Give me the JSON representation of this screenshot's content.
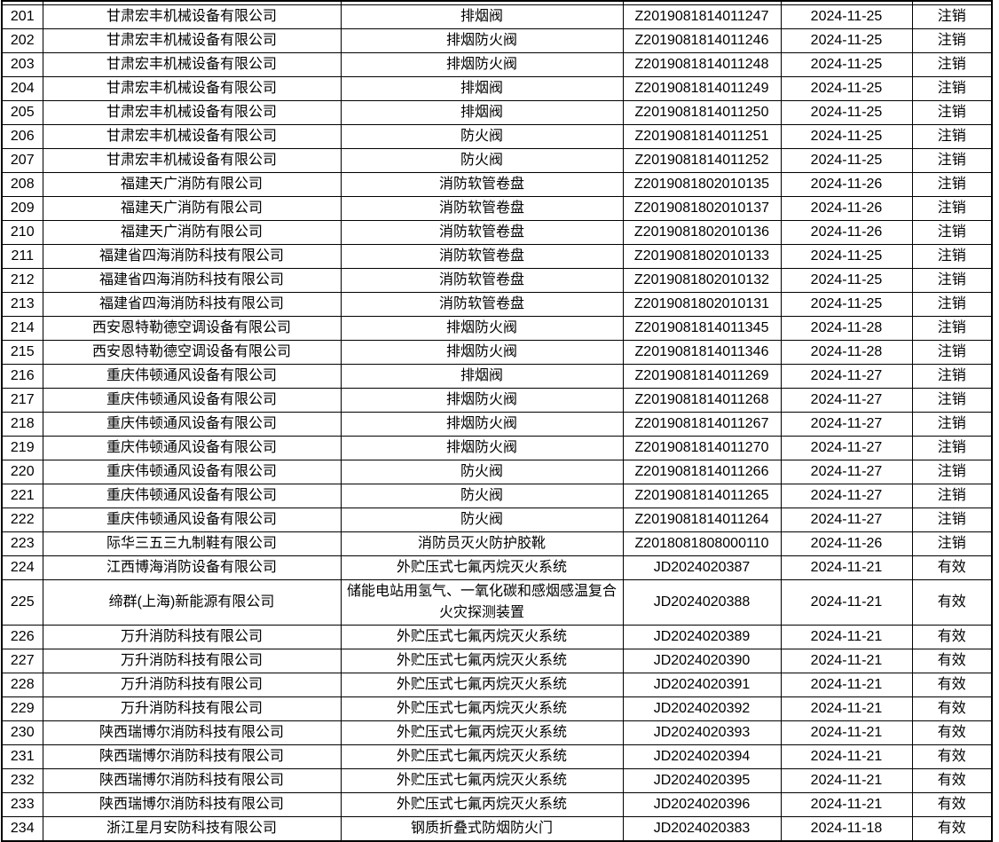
{
  "colors": {
    "background": "#ffffff",
    "border": "#000000",
    "text": "#000000"
  },
  "table": {
    "rows": [
      {
        "no": "201",
        "company": "甘肃宏丰机械设备有限公司",
        "product": "排烟阀",
        "cert_no": "Z2019081814011247",
        "date": "2024-11-25",
        "status": "注销"
      },
      {
        "no": "202",
        "company": "甘肃宏丰机械设备有限公司",
        "product": "排烟防火阀",
        "cert_no": "Z2019081814011246",
        "date": "2024-11-25",
        "status": "注销"
      },
      {
        "no": "203",
        "company": "甘肃宏丰机械设备有限公司",
        "product": "排烟防火阀",
        "cert_no": "Z2019081814011248",
        "date": "2024-11-25",
        "status": "注销"
      },
      {
        "no": "204",
        "company": "甘肃宏丰机械设备有限公司",
        "product": "排烟阀",
        "cert_no": "Z2019081814011249",
        "date": "2024-11-25",
        "status": "注销"
      },
      {
        "no": "205",
        "company": "甘肃宏丰机械设备有限公司",
        "product": "排烟阀",
        "cert_no": "Z2019081814011250",
        "date": "2024-11-25",
        "status": "注销"
      },
      {
        "no": "206",
        "company": "甘肃宏丰机械设备有限公司",
        "product": "防火阀",
        "cert_no": "Z2019081814011251",
        "date": "2024-11-25",
        "status": "注销"
      },
      {
        "no": "207",
        "company": "甘肃宏丰机械设备有限公司",
        "product": "防火阀",
        "cert_no": "Z2019081814011252",
        "date": "2024-11-25",
        "status": "注销"
      },
      {
        "no": "208",
        "company": "福建天广消防有限公司",
        "product": "消防软管卷盘",
        "cert_no": "Z2019081802010135",
        "date": "2024-11-26",
        "status": "注销"
      },
      {
        "no": "209",
        "company": "福建天广消防有限公司",
        "product": "消防软管卷盘",
        "cert_no": "Z2019081802010137",
        "date": "2024-11-26",
        "status": "注销"
      },
      {
        "no": "210",
        "company": "福建天广消防有限公司",
        "product": "消防软管卷盘",
        "cert_no": "Z2019081802010136",
        "date": "2024-11-26",
        "status": "注销"
      },
      {
        "no": "211",
        "company": "福建省四海消防科技有限公司",
        "product": "消防软管卷盘",
        "cert_no": "Z2019081802010133",
        "date": "2024-11-25",
        "status": "注销"
      },
      {
        "no": "212",
        "company": "福建省四海消防科技有限公司",
        "product": "消防软管卷盘",
        "cert_no": "Z2019081802010132",
        "date": "2024-11-25",
        "status": "注销"
      },
      {
        "no": "213",
        "company": "福建省四海消防科技有限公司",
        "product": "消防软管卷盘",
        "cert_no": "Z2019081802010131",
        "date": "2024-11-25",
        "status": "注销"
      },
      {
        "no": "214",
        "company": "西安恩特勒德空调设备有限公司",
        "product": "排烟防火阀",
        "cert_no": "Z2019081814011345",
        "date": "2024-11-28",
        "status": "注销"
      },
      {
        "no": "215",
        "company": "西安恩特勒德空调设备有限公司",
        "product": "排烟防火阀",
        "cert_no": "Z2019081814011346",
        "date": "2024-11-28",
        "status": "注销"
      },
      {
        "no": "216",
        "company": "重庆伟顿通风设备有限公司",
        "product": "排烟阀",
        "cert_no": "Z2019081814011269",
        "date": "2024-11-27",
        "status": "注销"
      },
      {
        "no": "217",
        "company": "重庆伟顿通风设备有限公司",
        "product": "排烟防火阀",
        "cert_no": "Z2019081814011268",
        "date": "2024-11-27",
        "status": "注销"
      },
      {
        "no": "218",
        "company": "重庆伟顿通风设备有限公司",
        "product": "排烟防火阀",
        "cert_no": "Z2019081814011267",
        "date": "2024-11-27",
        "status": "注销"
      },
      {
        "no": "219",
        "company": "重庆伟顿通风设备有限公司",
        "product": "排烟防火阀",
        "cert_no": "Z2019081814011270",
        "date": "2024-11-27",
        "status": "注销"
      },
      {
        "no": "220",
        "company": "重庆伟顿通风设备有限公司",
        "product": "防火阀",
        "cert_no": "Z2019081814011266",
        "date": "2024-11-27",
        "status": "注销"
      },
      {
        "no": "221",
        "company": "重庆伟顿通风设备有限公司",
        "product": "防火阀",
        "cert_no": "Z2019081814011265",
        "date": "2024-11-27",
        "status": "注销"
      },
      {
        "no": "222",
        "company": "重庆伟顿通风设备有限公司",
        "product": "防火阀",
        "cert_no": "Z2019081814011264",
        "date": "2024-11-27",
        "status": "注销"
      },
      {
        "no": "223",
        "company": "际华三五三九制鞋有限公司",
        "product": "消防员灭火防护胶靴",
        "cert_no": "Z2018081808000110",
        "date": "2024-11-26",
        "status": "注销"
      },
      {
        "no": "224",
        "company": "江西博海消防设备有限公司",
        "product": "外贮压式七氟丙烷灭火系统",
        "cert_no": "JD2024020387",
        "date": "2024-11-21",
        "status": "有效"
      },
      {
        "no": "225",
        "company": "缔群(上海)新能源有限公司",
        "product": "储能电站用氢气、一氧化碳和感烟感温复合火灾探测装置",
        "cert_no": "JD2024020388",
        "date": "2024-11-21",
        "status": "有效"
      },
      {
        "no": "226",
        "company": "万升消防科技有限公司",
        "product": "外贮压式七氟丙烷灭火系统",
        "cert_no": "JD2024020389",
        "date": "2024-11-21",
        "status": "有效"
      },
      {
        "no": "227",
        "company": "万升消防科技有限公司",
        "product": "外贮压式七氟丙烷灭火系统",
        "cert_no": "JD2024020390",
        "date": "2024-11-21",
        "status": "有效"
      },
      {
        "no": "228",
        "company": "万升消防科技有限公司",
        "product": "外贮压式七氟丙烷灭火系统",
        "cert_no": "JD2024020391",
        "date": "2024-11-21",
        "status": "有效"
      },
      {
        "no": "229",
        "company": "万升消防科技有限公司",
        "product": "外贮压式七氟丙烷灭火系统",
        "cert_no": "JD2024020392",
        "date": "2024-11-21",
        "status": "有效"
      },
      {
        "no": "230",
        "company": "陕西瑞博尔消防科技有限公司",
        "product": "外贮压式七氟丙烷灭火系统",
        "cert_no": "JD2024020393",
        "date": "2024-11-21",
        "status": "有效"
      },
      {
        "no": "231",
        "company": "陕西瑞博尔消防科技有限公司",
        "product": "外贮压式七氟丙烷灭火系统",
        "cert_no": "JD2024020394",
        "date": "2024-11-21",
        "status": "有效"
      },
      {
        "no": "232",
        "company": "陕西瑞博尔消防科技有限公司",
        "product": "外贮压式七氟丙烷灭火系统",
        "cert_no": "JD2024020395",
        "date": "2024-11-21",
        "status": "有效"
      },
      {
        "no": "233",
        "company": "陕西瑞博尔消防科技有限公司",
        "product": "外贮压式七氟丙烷灭火系统",
        "cert_no": "JD2024020396",
        "date": "2024-11-21",
        "status": "有效"
      },
      {
        "no": "234",
        "company": "浙江星月安防科技有限公司",
        "product": "钢质折叠式防烟防火门",
        "cert_no": "JD2024020383",
        "date": "2024-11-18",
        "status": "有效"
      }
    ]
  }
}
